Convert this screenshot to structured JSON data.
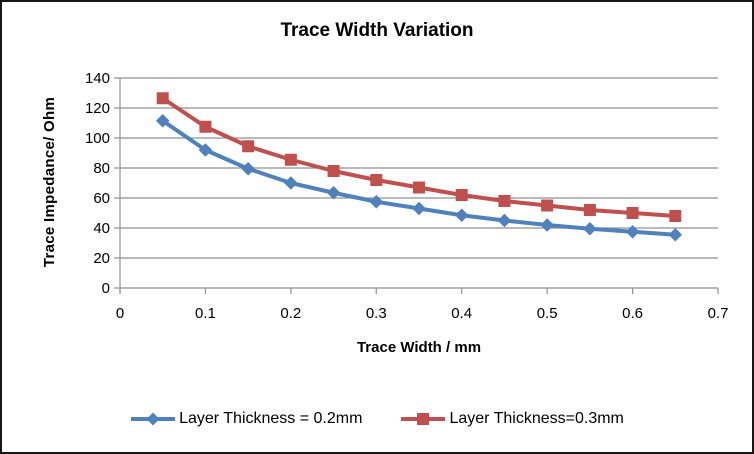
{
  "frame": {
    "background": "#FFFFFF",
    "border_color": "#161616"
  },
  "chart_data": {
    "type": "line",
    "title": "Trace Width Variation",
    "xlabel": "Trace Width / mm",
    "ylabel": "Trace Impedance/ Ohm",
    "x": [
      0.05,
      0.1,
      0.15,
      0.2,
      0.25,
      0.3,
      0.35,
      0.4,
      0.45,
      0.5,
      0.55,
      0.6,
      0.65
    ],
    "series": [
      {
        "name": "Layer Thickness = 0.2mm",
        "color": "#4F81BD",
        "marker": "diamond",
        "values": [
          111.5,
          92,
          79.5,
          70,
          63.5,
          57.5,
          53,
          48.5,
          45,
          42,
          39.5,
          37.5,
          35.5
        ]
      },
      {
        "name": "Layer Thickness=0.3mm",
        "color": "#C0504D",
        "marker": "square",
        "values": [
          126.5,
          107.5,
          94.5,
          85.5,
          78,
          72,
          67,
          62,
          58,
          55,
          52,
          50,
          48
        ]
      }
    ],
    "xlim": [
      0,
      0.7
    ],
    "ylim": [
      0,
      140
    ],
    "xticks": [
      0,
      0.1,
      0.2,
      0.3,
      0.4,
      0.5,
      0.6,
      0.7
    ],
    "yticks": [
      0,
      20,
      40,
      60,
      80,
      100,
      120,
      140
    ],
    "grid": "horizontal",
    "gridline_color": "#919191",
    "axis_color": "#919191",
    "legend_position": "bottom"
  }
}
